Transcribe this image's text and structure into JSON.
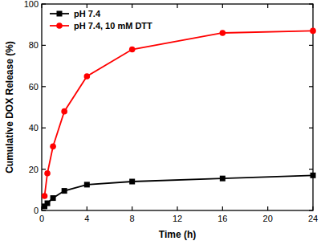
{
  "chart_data": {
    "type": "line",
    "x_label": "Time (h)",
    "y_label": "Cumulative DOX Release (%)",
    "x": [
      0.25,
      0.5,
      1,
      2,
      4,
      8,
      16,
      24
    ],
    "series": [
      {
        "name": "pH 7.4",
        "color": "#000000",
        "marker": "square",
        "line_style": "solid",
        "values": [
          2,
          3.5,
          6,
          9.5,
          12.5,
          14,
          15.5,
          17
        ]
      },
      {
        "name": "pH 7.4, 10 mM DTT",
        "color": "#ff0000",
        "marker": "circle",
        "line_style": "solid",
        "values": [
          7,
          18,
          31,
          48,
          65,
          78,
          86,
          87
        ]
      }
    ],
    "xlim": [
      0,
      24
    ],
    "xticks": [
      0,
      4,
      8,
      12,
      16,
      20,
      24
    ],
    "ylim": [
      0,
      100
    ],
    "yticks": [
      0,
      20,
      40,
      60,
      80,
      100
    ],
    "grid": false,
    "legend": "top-left"
  }
}
